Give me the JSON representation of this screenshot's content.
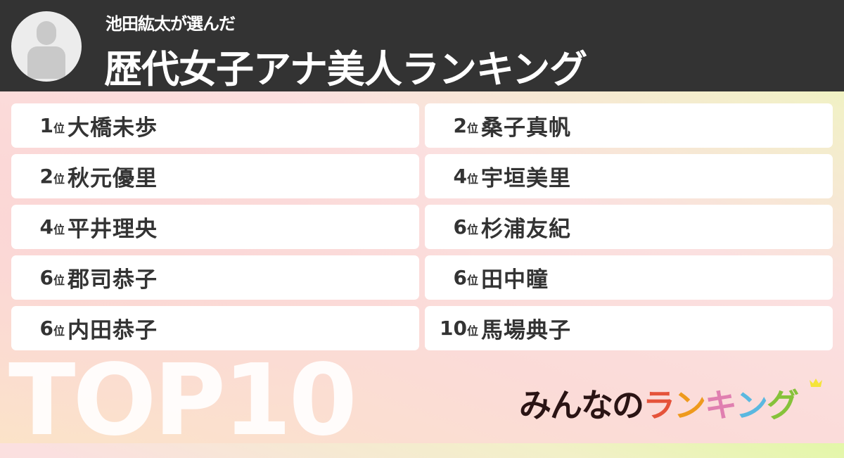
{
  "header": {
    "subtitle": "池田紘太が選んだ",
    "title": "歴代女子アナ美人ランキング"
  },
  "rank_suffix": "位",
  "rankings": [
    {
      "rank": "1",
      "name": "大橋未歩"
    },
    {
      "rank": "2",
      "name": "桑子真帆"
    },
    {
      "rank": "2",
      "name": "秋元優里"
    },
    {
      "rank": "4",
      "name": "宇垣美里"
    },
    {
      "rank": "4",
      "name": "平井理央"
    },
    {
      "rank": "6",
      "name": "杉浦友紀"
    },
    {
      "rank": "6",
      "name": "郡司恭子"
    },
    {
      "rank": "6",
      "name": "田中瞳"
    },
    {
      "rank": "6",
      "name": "内田恭子"
    },
    {
      "rank": "10",
      "name": "馬場典子"
    }
  ],
  "badge": "TOP10",
  "logo": {
    "text_dark": "みんなの",
    "letters": [
      "ラ",
      "ン",
      "キ",
      "ン",
      "グ"
    ],
    "colors": {
      "dark": "#2a1414",
      "letters": [
        "#e5533a",
        "#ee9a1d",
        "#e07fb0",
        "#5ab8e0",
        "#86c23a"
      ],
      "crown": "#f5e43a"
    }
  },
  "colors": {
    "header_bg": "#333333",
    "card_bg": "#ffffff",
    "text": "#333333"
  }
}
